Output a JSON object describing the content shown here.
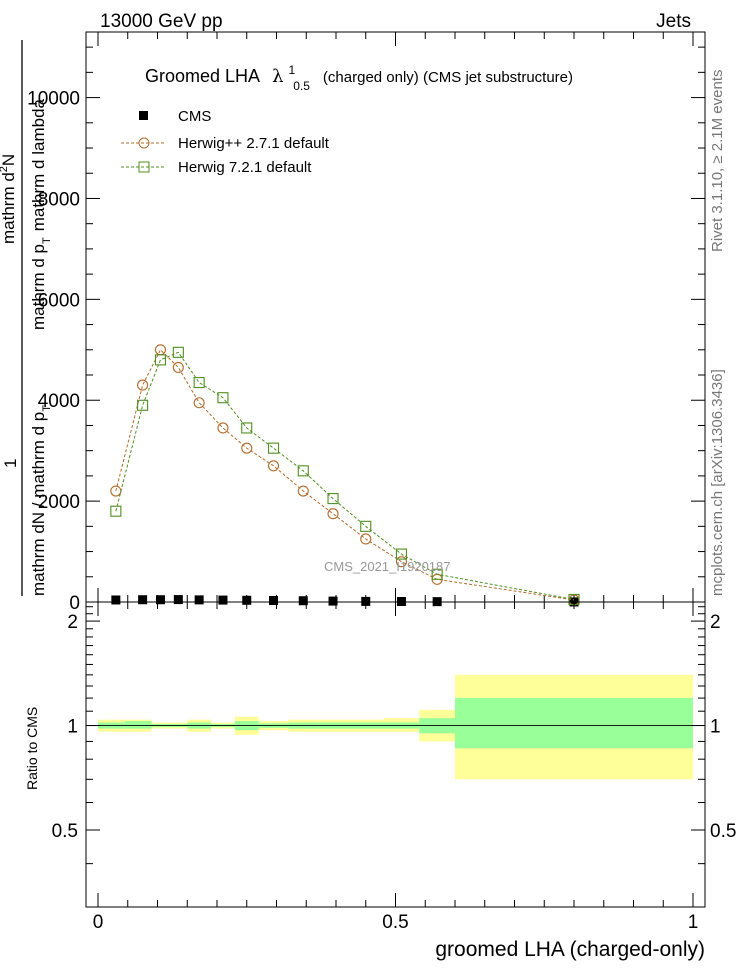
{
  "header": {
    "left": "13000 GeV pp",
    "right": "Jets"
  },
  "side_labels": {
    "rivet": "Rivet 3.1.10, ≥ 2.1M events",
    "mcplots": "mcplots.cern.ch [arXiv:1306.3436]"
  },
  "watermark": "CMS_2021_I1920187",
  "chart_data": [
    {
      "type": "line",
      "title_main": "Groomed LHA",
      "title_sup": "1",
      "title_sub": "0.5",
      "title_suffix": "(charged only) (CMS jet substructure)",
      "ylabel_pre": "1",
      "ylabel_num": "mathrm d",
      "ylabel_num_sup": "2",
      "ylabel_num_tail": "N",
      "ylabel_den": "mathrm d p",
      "ylabel_den_sub": "T",
      "ylabel_den_tail": "mathrm d lambda",
      "ylabel_left_num": "mathrm dN / mathrm d p",
      "ylabel_left_num_sub": "T",
      "ylabel_left_den": "mathrm dN / mathrm d p",
      "ylabel_left_den_tail": "T",
      "xlim": [
        0,
        1
      ],
      "ylim": [
        0,
        11300
      ],
      "yticks": [
        0,
        2000,
        4000,
        6000,
        8000,
        10000
      ],
      "ytick_labels": [
        "0",
        "2000",
        "4000",
        "6000",
        "8000",
        "10000"
      ],
      "legend_position": "top-left",
      "series": [
        {
          "name": "CMS",
          "marker": "filled-square",
          "color": "#000000",
          "x": [
            0.03,
            0.075,
            0.105,
            0.135,
            0.17,
            0.21,
            0.25,
            0.295,
            0.345,
            0.395,
            0.45,
            0.51,
            0.57,
            0.8
          ],
          "values": [
            40,
            45,
            45,
            48,
            42,
            38,
            34,
            30,
            25,
            18,
            12,
            10,
            7,
            1
          ]
        },
        {
          "name": "Herwig++ 2.7.1 default",
          "marker": "open-circle",
          "color": "#b36b2a",
          "x": [
            0.03,
            0.075,
            0.105,
            0.135,
            0.17,
            0.21,
            0.25,
            0.295,
            0.345,
            0.395,
            0.45,
            0.51,
            0.57,
            0.8
          ],
          "values": [
            2200,
            4300,
            5000,
            4650,
            3950,
            3450,
            3050,
            2700,
            2200,
            1750,
            1250,
            800,
            450,
            40
          ]
        },
        {
          "name": "Herwig 7.2.1 default",
          "marker": "open-square",
          "color": "#4e8f1e",
          "x": [
            0.03,
            0.075,
            0.105,
            0.135,
            0.17,
            0.21,
            0.25,
            0.295,
            0.345,
            0.395,
            0.45,
            0.51,
            0.57,
            0.8
          ],
          "values": [
            1800,
            3900,
            4800,
            4950,
            4350,
            4050,
            3450,
            3050,
            2600,
            2050,
            1500,
            950,
            550,
            50
          ]
        }
      ]
    },
    {
      "type": "area",
      "ylabel": "Ratio to CMS",
      "xlabel": "groomed LHA (charged-only)",
      "xlim": [
        0,
        1
      ],
      "ylim": [
        0.3,
        2.27
      ],
      "yticks": [
        0.5,
        1,
        2
      ],
      "ytick_labels": [
        "0.5",
        "1",
        "2"
      ],
      "xticks": [
        0,
        0.5,
        1
      ],
      "xtick_labels": [
        "0",
        "0.5",
        "1"
      ],
      "bins": [
        {
          "x0": 0.0,
          "x1": 0.045,
          "yellow": [
            0.96,
            1.04
          ],
          "green": [
            0.98,
            1.02
          ]
        },
        {
          "x0": 0.045,
          "x1": 0.09,
          "yellow": [
            0.96,
            1.04
          ],
          "green": [
            0.98,
            1.03
          ]
        },
        {
          "x0": 0.09,
          "x1": 0.12,
          "yellow": [
            0.98,
            1.02
          ],
          "green": [
            0.99,
            1.01
          ]
        },
        {
          "x0": 0.12,
          "x1": 0.15,
          "yellow": [
            0.98,
            1.02
          ],
          "green": [
            0.99,
            1.01
          ]
        },
        {
          "x0": 0.15,
          "x1": 0.19,
          "yellow": [
            0.96,
            1.04
          ],
          "green": [
            0.98,
            1.02
          ]
        },
        {
          "x0": 0.19,
          "x1": 0.23,
          "yellow": [
            0.98,
            1.02
          ],
          "green": [
            0.99,
            1.01
          ]
        },
        {
          "x0": 0.23,
          "x1": 0.27,
          "yellow": [
            0.94,
            1.06
          ],
          "green": [
            0.97,
            1.03
          ]
        },
        {
          "x0": 0.27,
          "x1": 0.32,
          "yellow": [
            0.97,
            1.03
          ],
          "green": [
            0.985,
            1.015
          ]
        },
        {
          "x0": 0.32,
          "x1": 0.37,
          "yellow": [
            0.96,
            1.04
          ],
          "green": [
            0.98,
            1.02
          ]
        },
        {
          "x0": 0.37,
          "x1": 0.42,
          "yellow": [
            0.96,
            1.04
          ],
          "green": [
            0.98,
            1.02
          ]
        },
        {
          "x0": 0.42,
          "x1": 0.48,
          "yellow": [
            0.96,
            1.04
          ],
          "green": [
            0.98,
            1.02
          ]
        },
        {
          "x0": 0.48,
          "x1": 0.54,
          "yellow": [
            0.96,
            1.05
          ],
          "green": [
            0.98,
            1.02
          ]
        },
        {
          "x0": 0.54,
          "x1": 0.6,
          "yellow": [
            0.9,
            1.11
          ],
          "green": [
            0.95,
            1.05
          ]
        },
        {
          "x0": 0.6,
          "x1": 1.0,
          "yellow": [
            0.7,
            1.4
          ],
          "green": [
            0.86,
            1.2
          ]
        }
      ],
      "colors": {
        "yellow": "#ffff99",
        "green": "#99ff99",
        "line": "#000000"
      }
    }
  ]
}
